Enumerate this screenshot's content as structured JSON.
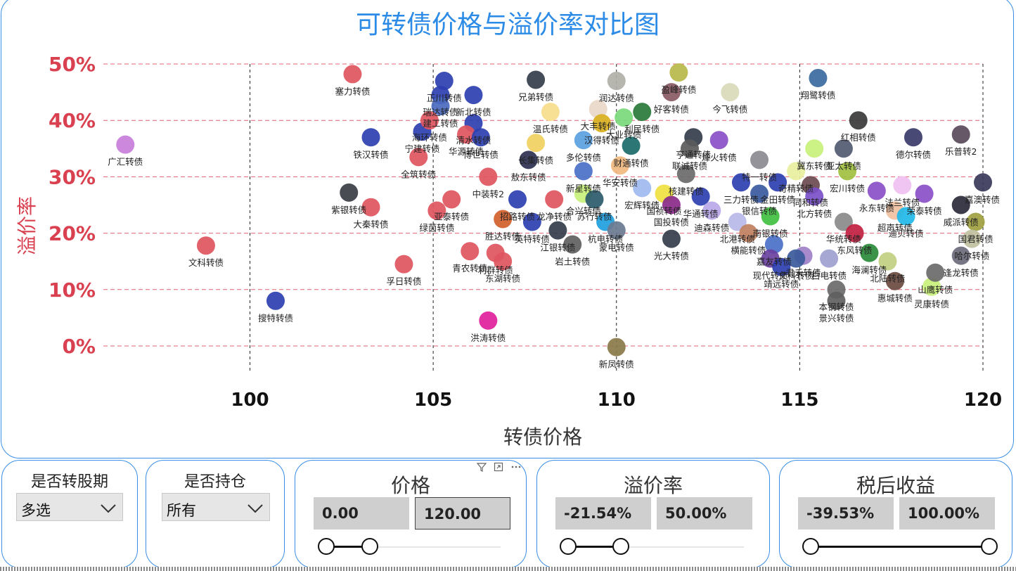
{
  "chart_data": {
    "type": "scatter",
    "title": "可转债价格与溢价率对比图",
    "xlabel": "转债价格",
    "ylabel": "溢价率",
    "xlim": [
      96,
      120
    ],
    "ylim": [
      -2,
      50
    ],
    "xticks": [
      100,
      105,
      110,
      115,
      120
    ],
    "yticks": [
      0,
      10,
      20,
      30,
      40,
      50
    ],
    "ytick_labels": [
      "0%",
      "10%",
      "20%",
      "30%",
      "40%",
      "50%"
    ],
    "grid": "dashed",
    "points": [
      {
        "name": "正川转债",
        "x": 105.3,
        "y": 47,
        "color": "#2c3fb0"
      },
      {
        "name": "塞力转债",
        "x": 102.8,
        "y": 48.2,
        "color": "#e05560"
      },
      {
        "name": "瑞达转债",
        "x": 105.2,
        "y": 44.5,
        "color": "#2c3fb0"
      },
      {
        "name": "兄弟转债",
        "x": 107.8,
        "y": 47.2,
        "color": "#333d4a"
      },
      {
        "name": "新北转债",
        "x": 106.1,
        "y": 44.5,
        "color": "#2c3fb0"
      },
      {
        "name": "盈峰转债",
        "x": 111.7,
        "y": 48.5,
        "color": "#b8b84a"
      },
      {
        "name": "润达转债",
        "x": 110,
        "y": 47,
        "color": "#b0b0a8"
      },
      {
        "name": "好客转债",
        "x": 111.5,
        "y": 45,
        "color": "#8a5a64"
      },
      {
        "name": "翔鹭转债",
        "x": 115.5,
        "y": 47.5,
        "color": "#3a6aa0"
      },
      {
        "name": "今飞转债",
        "x": 113.1,
        "y": 45,
        "color": "#d9d9b8"
      },
      {
        "name": "建工转债",
        "x": 105.2,
        "y": 42.5,
        "color": "#4a6abf"
      },
      {
        "name": "大丰转债",
        "x": 109.5,
        "y": 42,
        "color": "#e8d8c8"
      },
      {
        "name": "利民转债",
        "x": 110.7,
        "y": 41.5,
        "color": "#2a7a3a"
      },
      {
        "name": "广汇转债",
        "x": 96.6,
        "y": 35.7,
        "color": "#c77ed9"
      },
      {
        "name": "清水转债",
        "x": 106.1,
        "y": 39.5,
        "color": "#2c3fb0"
      },
      {
        "name": "宁建转债",
        "x": 104.7,
        "y": 38,
        "color": "#2c3fb0"
      },
      {
        "name": "温氏转债",
        "x": 108.2,
        "y": 41.5,
        "color": "#f6dd8a"
      },
      {
        "name": "汉得转债",
        "x": 109.6,
        "y": 39.5,
        "color": "#d9b020"
      },
      {
        "name": "大业转债",
        "x": 110.2,
        "y": 40.5,
        "color": "#7ad97a"
      },
      {
        "name": "铁汉转债",
        "x": 103.3,
        "y": 37,
        "color": "#2c3fb0"
      },
      {
        "name": "海环转债",
        "x": 104.9,
        "y": 40,
        "color": "#e05560"
      },
      {
        "name": "华源转债",
        "x": 105.9,
        "y": 37.5,
        "color": "#e05560"
      },
      {
        "name": "博世转债",
        "x": 106.3,
        "y": 37,
        "color": "#2c3fb0"
      },
      {
        "name": "长集转债",
        "x": 107.8,
        "y": 36,
        "color": "#f0d060"
      },
      {
        "name": "亨通转债",
        "x": 112.1,
        "y": 37,
        "color": "#333d4a"
      },
      {
        "name": "冀东转债",
        "x": 115.4,
        "y": 35,
        "color": "#c8f07a"
      },
      {
        "name": "红相转债",
        "x": 116.6,
        "y": 40,
        "color": "#3a3a3a"
      },
      {
        "name": "多伦转债",
        "x": 109.1,
        "y": 36.5,
        "color": "#5aa0e0"
      },
      {
        "name": "财通转债",
        "x": 110.4,
        "y": 35.5,
        "color": "#1a6a6a"
      },
      {
        "name": "烽火转债",
        "x": 112.8,
        "y": 36.5,
        "color": "#8a50c8"
      },
      {
        "name": "特一转债",
        "x": 113.9,
        "y": 33,
        "color": "#8a8a90"
      },
      {
        "name": "亚太转债",
        "x": 116.2,
        "y": 35,
        "color": "#505a70"
      },
      {
        "name": "德尔转债",
        "x": 118.1,
        "y": 37,
        "color": "#3a3a6a"
      },
      {
        "name": "乐普转2",
        "x": 119.4,
        "y": 37.5,
        "color": "#5a4a5a"
      },
      {
        "name": "全筑转债",
        "x": 104.6,
        "y": 33.5,
        "color": "#e05560"
      },
      {
        "name": "联诚转债",
        "x": 112,
        "y": 35,
        "color": "#5a5a5a"
      },
      {
        "name": "宏川转债",
        "x": 116.3,
        "y": 31,
        "color": "#a0c040"
      },
      {
        "name": "敖东转债",
        "x": 107.6,
        "y": 33,
        "color": "#2c3050"
      },
      {
        "name": "新星转债",
        "x": 109.1,
        "y": 31,
        "color": "#4a70c8"
      },
      {
        "name": "中装转2",
        "x": 106.5,
        "y": 30,
        "color": "#e05560"
      },
      {
        "name": "华安转债",
        "x": 110.1,
        "y": 32,
        "color": "#f0b880"
      },
      {
        "name": "核建转债",
        "x": 111.9,
        "y": 30.5,
        "color": "#6a6a6a"
      },
      {
        "name": "奇精转债",
        "x": 114.9,
        "y": 31,
        "color": "#e8f0a0"
      },
      {
        "name": "三力转债",
        "x": 113.4,
        "y": 29,
        "color": "#2c3fb0"
      },
      {
        "name": "金田转债",
        "x": 114.4,
        "y": 29,
        "color": "#2c3fb0"
      },
      {
        "name": "同和转债",
        "x": 115.3,
        "y": 28.5,
        "color": "#6a4a50"
      },
      {
        "name": "嘉澳转债",
        "x": 120,
        "y": 29,
        "color": "#3a3a5a"
      },
      {
        "name": "紫银转债",
        "x": 102.7,
        "y": 27.2,
        "color": "#3a3d44"
      },
      {
        "name": "亚泰转债",
        "x": 105.5,
        "y": 26,
        "color": "#e05560"
      },
      {
        "name": "合兴转债",
        "x": 109.1,
        "y": 27,
        "color": "#c8f07a"
      },
      {
        "name": "宏辉转债",
        "x": 110.7,
        "y": 28,
        "color": "#a0b8f0"
      },
      {
        "name": "国祯转债",
        "x": 111.3,
        "y": 27,
        "color": "#f0e040"
      },
      {
        "name": "华通转债",
        "x": 112.3,
        "y": 26.5,
        "color": "#2c3fb0"
      },
      {
        "name": "银信转债",
        "x": 113.9,
        "y": 27,
        "color": "#3a5aa0"
      },
      {
        "name": "法兰转债",
        "x": 117.8,
        "y": 28.5,
        "color": "#f0c0f0"
      },
      {
        "name": "荣泰转债",
        "x": 118.4,
        "y": 27,
        "color": "#8a50c8"
      },
      {
        "name": "招路转债",
        "x": 107.3,
        "y": 26,
        "color": "#2c3fb0"
      },
      {
        "name": "苏行转债",
        "x": 109.4,
        "y": 26,
        "color": "#2a5a6a"
      },
      {
        "name": "国投转债",
        "x": 111.5,
        "y": 25,
        "color": "#8a2a8a"
      },
      {
        "name": "大秦转债",
        "x": 103.3,
        "y": 24.6,
        "color": "#e05560"
      },
      {
        "name": "绿茵转债",
        "x": 105.1,
        "y": 24,
        "color": "#e05560"
      },
      {
        "name": "胜达转债",
        "x": 106.9,
        "y": 22.5,
        "color": "#d0602a"
      },
      {
        "name": "龙净转债",
        "x": 108.3,
        "y": 26,
        "color": "#e05560"
      },
      {
        "name": "迪森转债",
        "x": 112.6,
        "y": 24,
        "color": "#b8a8e8"
      },
      {
        "name": "南银转债",
        "x": 114.2,
        "y": 23,
        "color": "#40c040"
      },
      {
        "name": "北方转债",
        "x": 115.4,
        "y": 26.5,
        "color": "#7a50c8"
      },
      {
        "name": "永东转债",
        "x": 117.1,
        "y": 27.5,
        "color": "#8a50c8"
      },
      {
        "name": "超声转债",
        "x": 117.6,
        "y": 24,
        "color": "#f0c0a0"
      },
      {
        "name": "威派转债",
        "x": 119.4,
        "y": 25,
        "color": "#2a2a3a"
      },
      {
        "name": "英特转债",
        "x": 107.7,
        "y": 22,
        "color": "#2c3fb0"
      },
      {
        "name": "杭电转债",
        "x": 109.7,
        "y": 22,
        "color": "#20a0e0"
      },
      {
        "name": "北港转债",
        "x": 113.3,
        "y": 22,
        "color": "#b8b8e8"
      },
      {
        "name": "华统转债",
        "x": 116.2,
        "y": 22,
        "color": "#8a8a8a"
      },
      {
        "name": "迪贝转债",
        "x": 117.9,
        "y": 23,
        "color": "#20b8e8"
      },
      {
        "name": "国君转债",
        "x": 119.8,
        "y": 22,
        "color": "#a0a040"
      },
      {
        "name": "江银转债",
        "x": 108.4,
        "y": 20.5,
        "color": "#333d4a"
      },
      {
        "name": "蒙电转债",
        "x": 110,
        "y": 20.5,
        "color": "#6a7a90"
      },
      {
        "name": "横能转债",
        "x": 113.6,
        "y": 20,
        "color": "#c08060"
      },
      {
        "name": "东风转债",
        "x": 116.5,
        "y": 20,
        "color": "#c02040"
      },
      {
        "name": "哈尔转债",
        "x": 119.7,
        "y": 19,
        "color": "#c0c0a0"
      },
      {
        "name": "文科转债",
        "x": 98.8,
        "y": 17.8,
        "color": "#e05560"
      },
      {
        "name": "光大转债",
        "x": 111.5,
        "y": 19,
        "color": "#333d4a"
      },
      {
        "name": "嘉友转债",
        "x": 114.3,
        "y": 18,
        "color": "#4a70c8"
      },
      {
        "name": "君禾转债",
        "x": 115.1,
        "y": 16,
        "color": "#a080c8"
      },
      {
        "name": "青农转债",
        "x": 106,
        "y": 16.8,
        "color": "#e05560"
      },
      {
        "name": "利群转债",
        "x": 106.7,
        "y": 16.5,
        "color": "#e05560"
      },
      {
        "name": "岩土转债",
        "x": 108.8,
        "y": 18,
        "color": "#606060"
      },
      {
        "name": "海澜转债",
        "x": 116.9,
        "y": 16.5,
        "color": "#2a8a3a"
      },
      {
        "name": "逢龙转债",
        "x": 119.4,
        "y": 16,
        "color": "#6a6a7a"
      },
      {
        "name": "东湖转债",
        "x": 106.9,
        "y": 15,
        "color": "#e05560"
      },
      {
        "name": "现代转债",
        "x": 114.2,
        "y": 15.5,
        "color": "#6a40a0"
      },
      {
        "name": "文科转债",
        "x": 114.9,
        "y": 15.5,
        "color": "#3a5a9a"
      },
      {
        "name": "白电转债",
        "x": 115.8,
        "y": 15.5,
        "color": "#a0a0d0"
      },
      {
        "name": "北陆转债",
        "x": 117.4,
        "y": 15,
        "color": "#c0d080"
      },
      {
        "name": "灵康转债",
        "x": 118.6,
        "y": 10.5,
        "color": "#c8f07a"
      },
      {
        "name": "孚日转债",
        "x": 104.2,
        "y": 14.5,
        "color": "#e05560"
      },
      {
        "name": "靖远转债",
        "x": 114.5,
        "y": 14,
        "color": "#2c3fb0"
      },
      {
        "name": "山鹰转债",
        "x": 118.7,
        "y": 13,
        "color": "#6a6a6a"
      },
      {
        "name": "惠城转债",
        "x": 117.6,
        "y": 11.5,
        "color": "#6a4a40"
      },
      {
        "name": "本钢转债",
        "x": 116,
        "y": 10,
        "color": "#6a6a6a"
      },
      {
        "name": "景兴转债",
        "x": 116,
        "y": 8,
        "color": "#606060"
      },
      {
        "name": "搜特转债",
        "x": 100.7,
        "y": 8,
        "color": "#2c3fb0"
      },
      {
        "name": "洪涛转债",
        "x": 106.5,
        "y": 4.5,
        "color": "#e0209a"
      },
      {
        "name": "新凤转债",
        "x": 110,
        "y": -0.2,
        "color": "#8a7a4a"
      }
    ]
  },
  "filters": [
    {
      "title": "是否转股期",
      "value": "多选"
    },
    {
      "title": "是否持仓",
      "value": "所有"
    }
  ],
  "ranges": [
    {
      "title": "价格",
      "min": "0.00",
      "max": "120.00",
      "lo": 0.0,
      "hi": 0.25
    },
    {
      "title": "溢价率",
      "min": "-21.54%",
      "max": "50.00%",
      "lo": 0.0,
      "hi": 0.3
    },
    {
      "title": "税后收益",
      "min": "-39.53%",
      "max": "100.00%",
      "lo": 0.0,
      "hi": 1.0
    }
  ],
  "colors": {
    "title": "#2b8be6",
    "axis": "#d94050",
    "tick": "#111111",
    "border": "#3a8ee6",
    "grid_h": "#e06070"
  }
}
